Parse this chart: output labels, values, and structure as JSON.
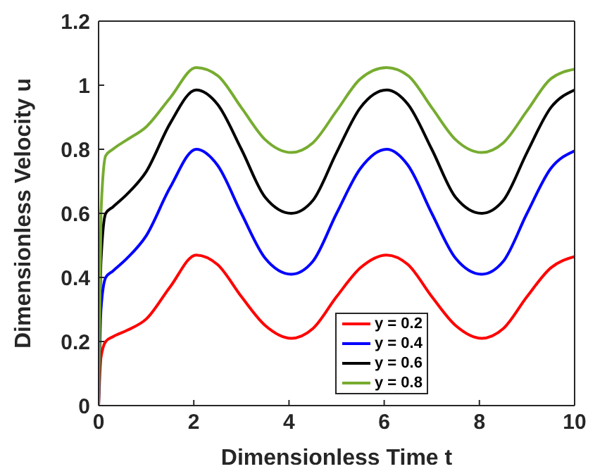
{
  "chart_data": {
    "type": "line",
    "xlabel": "Dimensionless Time t",
    "ylabel": "Dimensionless Velocity u",
    "x": [
      0,
      0.05,
      0.15,
      0.3,
      0.6,
      1,
      1.5,
      2.05,
      2.5,
      3,
      3.5,
      4.05,
      4.5,
      5,
      5.5,
      6.05,
      6.5,
      7,
      7.5,
      8.05,
      8.5,
      9,
      9.5,
      10
    ],
    "series": [
      {
        "name": "y = 0.2",
        "color": "#ff0000",
        "values": [
          0,
          0.15,
          0.2,
          0.215,
          0.235,
          0.27,
          0.37,
          0.47,
          0.44,
          0.34,
          0.25,
          0.21,
          0.24,
          0.34,
          0.43,
          0.47,
          0.44,
          0.34,
          0.25,
          0.21,
          0.24,
          0.34,
          0.43,
          0.465
        ]
      },
      {
        "name": "y = 0.4",
        "color": "#0000ff",
        "values": [
          0,
          0.3,
          0.4,
          0.42,
          0.46,
          0.53,
          0.68,
          0.8,
          0.75,
          0.6,
          0.46,
          0.41,
          0.45,
          0.6,
          0.74,
          0.8,
          0.75,
          0.6,
          0.46,
          0.41,
          0.45,
          0.6,
          0.74,
          0.795
        ]
      },
      {
        "name": "y = 0.6",
        "color": "#000000",
        "values": [
          0,
          0.45,
          0.6,
          0.62,
          0.66,
          0.73,
          0.88,
          0.985,
          0.94,
          0.8,
          0.65,
          0.6,
          0.64,
          0.79,
          0.93,
          0.985,
          0.94,
          0.8,
          0.65,
          0.6,
          0.64,
          0.79,
          0.93,
          0.985
        ]
      },
      {
        "name": "y = 0.8",
        "color": "#77ac30",
        "values": [
          0,
          0.6,
          0.78,
          0.8,
          0.83,
          0.87,
          0.96,
          1.055,
          1.03,
          0.93,
          0.83,
          0.79,
          0.82,
          0.92,
          1.02,
          1.055,
          1.03,
          0.93,
          0.83,
          0.79,
          0.82,
          0.92,
          1.02,
          1.05
        ]
      }
    ],
    "xlim": [
      0,
      10
    ],
    "xticks": [
      0,
      2,
      4,
      6,
      8,
      10
    ],
    "ylim": [
      0,
      1.2
    ],
    "yticks": [
      0,
      0.2,
      0.4,
      0.6,
      0.8,
      1,
      1.2
    ],
    "legend": "bottom right",
    "marker": "none",
    "line_style": "solid",
    "grid": false
  }
}
